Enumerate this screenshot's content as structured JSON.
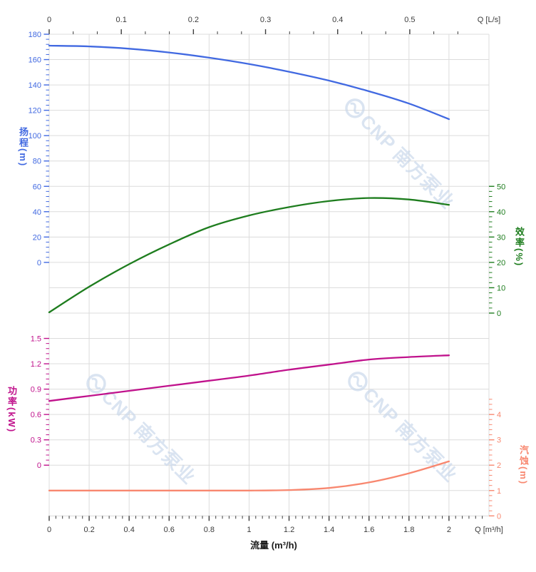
{
  "chart_data": {
    "type": "line",
    "title": "",
    "x_axis_bottom": {
      "title": "流量 (m³/h)",
      "unit_label": "Q [m³/h]",
      "unit": "m³/h",
      "min": 0,
      "max": 2.2,
      "major_ticks": [
        0,
        0.2,
        0.4,
        0.6,
        0.8,
        1,
        1.2,
        1.4,
        1.6,
        1.8,
        2
      ],
      "minor_step": 0.033333,
      "tick_color": "#3C3C3C"
    },
    "x_axis_top": {
      "unit_label": "Q [L/s]",
      "unit": "L/s",
      "min": 0,
      "max": 0.61,
      "major_ticks": [
        0,
        0.1,
        0.2,
        0.3,
        0.4,
        0.5
      ],
      "minor_step": 0.033333,
      "tick_color": "#3C3C3C"
    },
    "y_axes": [
      {
        "id": "head",
        "title": "扬程(m)",
        "unit": "m",
        "side": "left",
        "color": "#4169E1",
        "major_ticks": [
          180,
          160,
          140,
          120,
          100,
          80,
          60,
          40,
          20,
          0
        ],
        "minor_step": 4,
        "minor_max": 180,
        "range": [
          0,
          180
        ]
      },
      {
        "id": "efficiency",
        "title": "效率(%)",
        "unit": "%",
        "side": "right",
        "color": "#1E7D1E",
        "major_ticks": [
          50,
          40,
          30,
          20,
          10,
          0
        ],
        "minor_step": 2,
        "minor_max": 50,
        "range": [
          0,
          50
        ]
      },
      {
        "id": "power",
        "title": "功率(kW)",
        "unit": "kW",
        "side": "left",
        "color": "#C0128C",
        "major_ticks": [
          1.5,
          1.2,
          0.9,
          0.6,
          0.3,
          0
        ],
        "minor_step": 0.06,
        "minor_max": 1.5,
        "range": [
          0,
          1.5
        ]
      },
      {
        "id": "npsh",
        "title": "汽蚀(m)",
        "unit": "m",
        "side": "right",
        "color": "#F8876F",
        "major_ticks": [
          4,
          3,
          2,
          1,
          0
        ],
        "minor_step": 0.2,
        "minor_max": 4.6,
        "range": [
          0,
          4
        ]
      }
    ],
    "series": [
      {
        "name": "head-curve",
        "axis": "head",
        "color": "#4169E1",
        "x": [
          0,
          0.2,
          0.4,
          0.6,
          0.8,
          1.0,
          1.2,
          1.4,
          1.6,
          1.8,
          2.0
        ],
        "values": [
          171,
          170.4,
          168.6,
          165.6,
          161.5,
          156.5,
          150.4,
          143.4,
          135,
          125.3,
          113
        ]
      },
      {
        "name": "efficiency-curve",
        "axis": "efficiency",
        "color": "#1E7D1E",
        "x": [
          0,
          0.2,
          0.4,
          0.6,
          0.8,
          1.0,
          1.2,
          1.4,
          1.6,
          1.8,
          2.0
        ],
        "values": [
          0.3,
          10.4,
          19.3,
          27.1,
          33.9,
          38.5,
          41.8,
          44.2,
          45.4,
          44.8,
          42.7
        ]
      },
      {
        "name": "power-curve",
        "axis": "power",
        "color": "#C0128C",
        "x": [
          0,
          0.2,
          0.4,
          0.6,
          0.8,
          1.0,
          1.2,
          1.4,
          1.6,
          1.8,
          2.0
        ],
        "values": [
          0.76,
          0.82,
          0.88,
          0.94,
          1.0,
          1.06,
          1.13,
          1.19,
          1.25,
          1.28,
          1.3
        ]
      },
      {
        "name": "npsh-curve",
        "axis": "npsh",
        "color": "#F8876F",
        "x": [
          0,
          0.2,
          0.4,
          0.6,
          0.8,
          1.0,
          1.2,
          1.4,
          1.6,
          1.8,
          2.0
        ],
        "values": [
          1.0,
          1.0,
          1.0,
          1.0,
          1.0,
          1.0,
          1.02,
          1.1,
          1.32,
          1.68,
          2.15
        ]
      }
    ],
    "grid": {
      "show": true,
      "color": "#DCDCDC"
    },
    "legend": {
      "show": false
    }
  },
  "watermark": {
    "text": "CNP 南方泵业",
    "color": "#C7D6EA"
  }
}
